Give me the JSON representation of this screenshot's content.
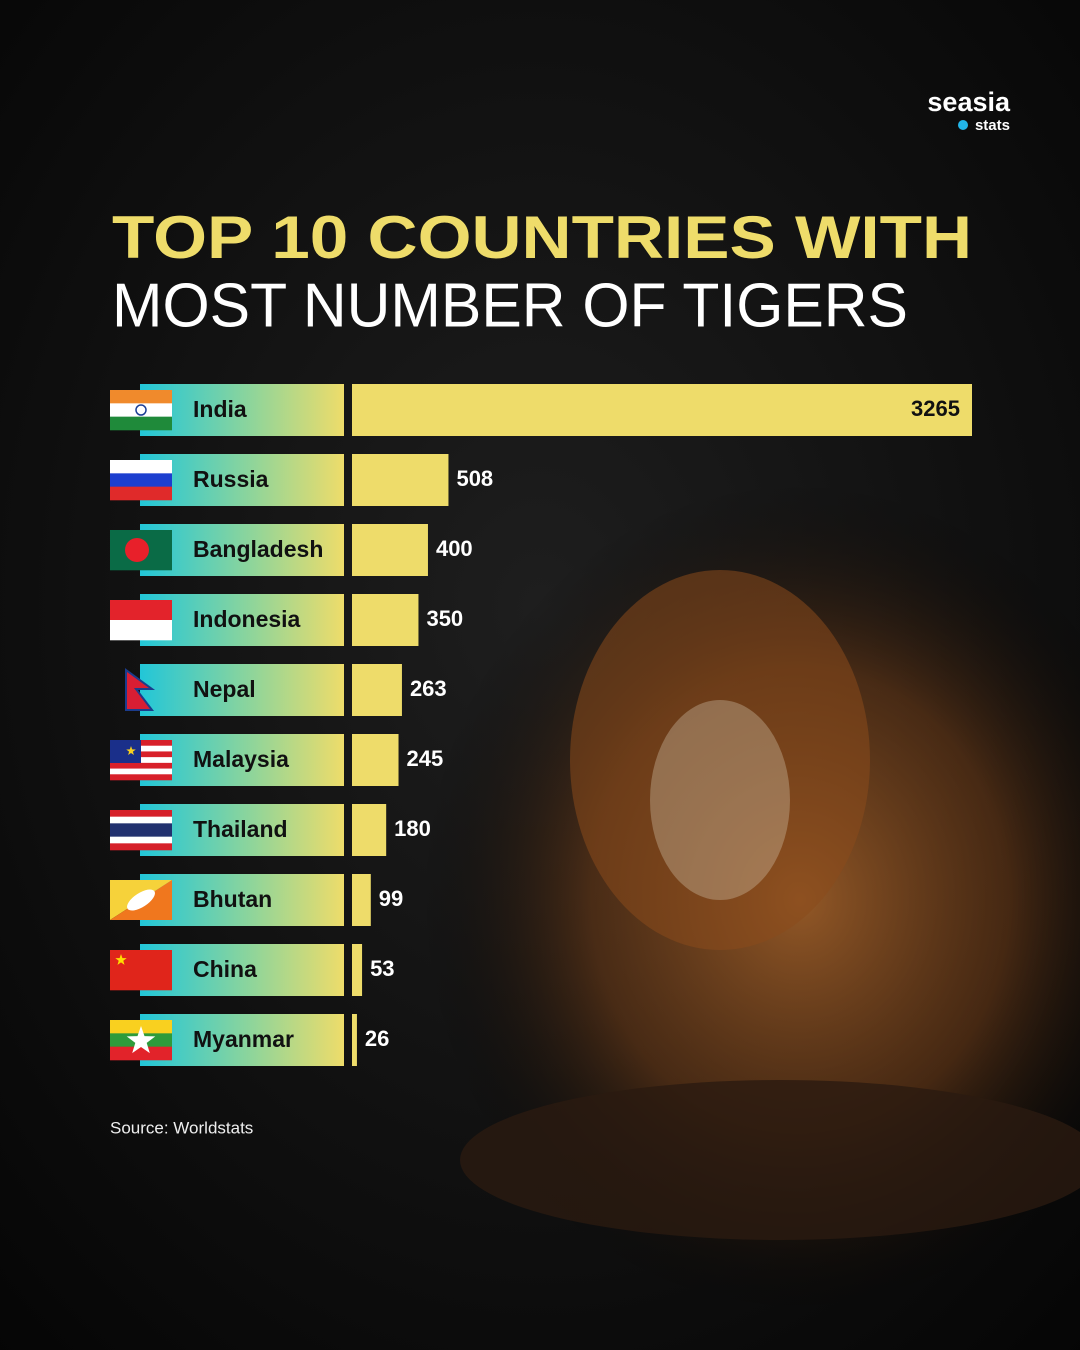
{
  "brand": {
    "name": "seasia",
    "tag": "stats"
  },
  "chart_data": {
    "type": "bar",
    "title": "TOP 10 COUNTRIES WITH",
    "subtitle": "MOST NUMBER OF TIGERS",
    "categories": [
      "India",
      "Russia",
      "Bangladesh",
      "Indonesia",
      "Nepal",
      "Malaysia",
      "Thailand",
      "Bhutan",
      "China",
      "Myanmar"
    ],
    "values": [
      3265,
      508,
      400,
      350,
      263,
      245,
      180,
      99,
      53,
      26
    ],
    "color": "#eedc6a",
    "source": "Source: Worldstats"
  }
}
